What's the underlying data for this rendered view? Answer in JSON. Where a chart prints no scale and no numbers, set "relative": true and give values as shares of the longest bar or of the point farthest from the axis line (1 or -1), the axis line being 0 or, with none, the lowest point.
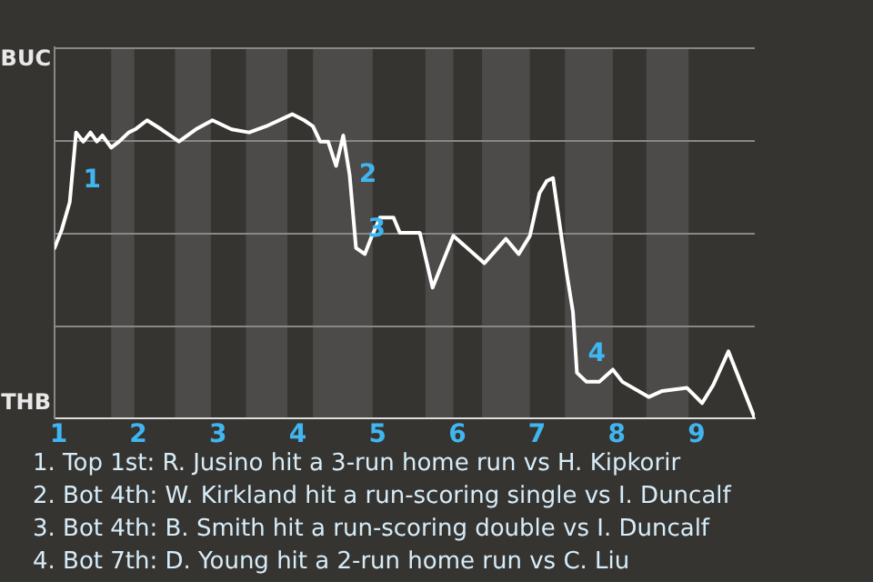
{
  "chart_data": {
    "type": "line",
    "relative": true,
    "x": [
      0.95,
      1.04,
      1.14,
      1.22,
      1.31,
      1.4,
      1.48,
      1.55,
      1.66,
      1.76,
      1.88,
      1.96,
      2.11,
      2.29,
      2.51,
      2.72,
      2.93,
      3.17,
      3.39,
      3.6,
      3.93,
      4.08,
      4.19,
      4.28,
      4.38,
      4.48,
      4.57,
      4.65,
      4.73,
      4.84,
      4.93,
      5.03,
      5.06,
      5.2,
      5.28,
      5.53,
      5.69,
      5.95,
      6.34,
      6.61,
      6.77,
      6.91,
      7.03,
      7.12,
      7.2,
      7.37,
      7.45,
      7.5,
      7.62,
      7.78,
      7.95,
      8.07,
      8.4,
      8.57,
      8.88,
      9.07,
      9.21,
      9.4,
      9.73
    ],
    "values": [
      0.56,
      0.62,
      0.71,
      0.94,
      0.91,
      0.94,
      0.91,
      0.93,
      0.89,
      0.91,
      0.94,
      0.95,
      0.98,
      0.95,
      0.91,
      0.95,
      0.98,
      0.95,
      0.94,
      0.96,
      1,
      0.98,
      0.96,
      0.91,
      0.91,
      0.83,
      0.93,
      0.8,
      0.56,
      0.54,
      0.6,
      0.66,
      0.66,
      0.66,
      0.61,
      0.61,
      0.43,
      0.6,
      0.51,
      0.59,
      0.54,
      0.6,
      0.74,
      0.78,
      0.79,
      0.48,
      0.35,
      0.15,
      0.12,
      0.12,
      0.16,
      0.12,
      0.07,
      0.09,
      0.1,
      0.05,
      0.11,
      0.22,
      0
    ],
    "color": "#ffffff",
    "xlim": [
      0.95,
      9.73
    ],
    "xticks": [
      1,
      2,
      3,
      4,
      5,
      6,
      7,
      8,
      9
    ],
    "grid": "y",
    "legend": false,
    "marker": "none",
    "line_style": "solid",
    "bands": [
      {
        "axis": "x",
        "from": 1.66,
        "to": 1.95,
        "color": "#4d4b49"
      },
      {
        "axis": "x",
        "from": 2.46,
        "to": 2.91,
        "color": "#4d4b49"
      },
      {
        "axis": "x",
        "from": 3.35,
        "to": 3.87,
        "color": "#4d4b49"
      },
      {
        "axis": "x",
        "from": 4.19,
        "to": 4.94,
        "color": "#4d4b49"
      },
      {
        "axis": "x",
        "from": 5.6,
        "to": 5.95,
        "color": "#4d4b49"
      },
      {
        "axis": "x",
        "from": 6.31,
        "to": 6.91,
        "color": "#4d4b49"
      },
      {
        "axis": "x",
        "from": 7.35,
        "to": 7.95,
        "color": "#4d4b49"
      },
      {
        "axis": "x",
        "from": 8.37,
        "to": 8.9,
        "color": "#4d4b49"
      }
    ],
    "annotations": [
      "BUC",
      "THB",
      {
        "text": "1",
        "x": 1.24,
        "y": 0.78
      },
      {
        "text": "2",
        "x": 4.7,
        "y": 0.8
      },
      {
        "text": "3",
        "x": 4.81,
        "y": 0.62
      },
      {
        "text": "4",
        "x": 7.57,
        "y": 0.21
      },
      "1. Top 1st: R. Jusino hit a 3-run home run vs H. Kipkorir",
      "2. Bot 4th: W. Kirkland hit a run-scoring single vs I. Duncalf",
      "3. Bot 4th: B. Smith hit a run-scoring double vs I. Duncalf",
      "4. Bot 7th: D. Young hit a 2-run home run vs C. Liu"
    ]
  }
}
